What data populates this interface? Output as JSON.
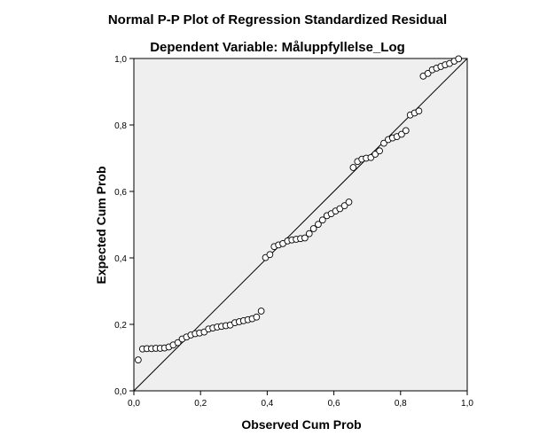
{
  "chart_data": {
    "type": "scatter",
    "title": "Normal P-P Plot of Regression Standardized Residual",
    "subtitle": "Dependent Variable: Måluppfyllelse_Log",
    "xlabel": "Observed Cum Prob",
    "ylabel": "Expected Cum Prob",
    "xlim": [
      0,
      1
    ],
    "ylim": [
      0,
      1
    ],
    "x_ticks": [
      "0,0",
      "0,2",
      "0,4",
      "0,6",
      "0,8",
      "1,0"
    ],
    "y_ticks": [
      "0,0",
      "0,2",
      "0,4",
      "0,6",
      "0,8",
      "1,0"
    ],
    "reference_line": {
      "from": [
        0,
        0
      ],
      "to": [
        1,
        1
      ]
    },
    "grid": false,
    "plot_background": "#efefef",
    "point_style": "open circle",
    "points": [
      [
        0.013,
        0.093
      ],
      [
        0.026,
        0.126
      ],
      [
        0.039,
        0.127
      ],
      [
        0.053,
        0.127
      ],
      [
        0.066,
        0.128
      ],
      [
        0.079,
        0.128
      ],
      [
        0.092,
        0.129
      ],
      [
        0.105,
        0.132
      ],
      [
        0.118,
        0.138
      ],
      [
        0.132,
        0.145
      ],
      [
        0.145,
        0.156
      ],
      [
        0.158,
        0.162
      ],
      [
        0.171,
        0.168
      ],
      [
        0.184,
        0.172
      ],
      [
        0.197,
        0.174
      ],
      [
        0.211,
        0.177
      ],
      [
        0.224,
        0.186
      ],
      [
        0.237,
        0.189
      ],
      [
        0.25,
        0.192
      ],
      [
        0.263,
        0.194
      ],
      [
        0.276,
        0.196
      ],
      [
        0.289,
        0.198
      ],
      [
        0.303,
        0.205
      ],
      [
        0.316,
        0.208
      ],
      [
        0.329,
        0.211
      ],
      [
        0.342,
        0.214
      ],
      [
        0.355,
        0.217
      ],
      [
        0.368,
        0.222
      ],
      [
        0.382,
        0.24
      ],
      [
        0.395,
        0.401
      ],
      [
        0.408,
        0.41
      ],
      [
        0.421,
        0.434
      ],
      [
        0.434,
        0.439
      ],
      [
        0.447,
        0.443
      ],
      [
        0.461,
        0.451
      ],
      [
        0.474,
        0.454
      ],
      [
        0.487,
        0.456
      ],
      [
        0.5,
        0.458
      ],
      [
        0.513,
        0.46
      ],
      [
        0.526,
        0.473
      ],
      [
        0.539,
        0.488
      ],
      [
        0.553,
        0.501
      ],
      [
        0.566,
        0.514
      ],
      [
        0.579,
        0.527
      ],
      [
        0.592,
        0.533
      ],
      [
        0.605,
        0.541
      ],
      [
        0.618,
        0.548
      ],
      [
        0.632,
        0.557
      ],
      [
        0.645,
        0.568
      ],
      [
        0.658,
        0.672
      ],
      [
        0.671,
        0.69
      ],
      [
        0.684,
        0.697
      ],
      [
        0.697,
        0.7
      ],
      [
        0.711,
        0.702
      ],
      [
        0.724,
        0.712
      ],
      [
        0.737,
        0.722
      ],
      [
        0.75,
        0.745
      ],
      [
        0.763,
        0.756
      ],
      [
        0.776,
        0.761
      ],
      [
        0.789,
        0.765
      ],
      [
        0.803,
        0.772
      ],
      [
        0.816,
        0.783
      ],
      [
        0.829,
        0.83
      ],
      [
        0.842,
        0.836
      ],
      [
        0.855,
        0.842
      ],
      [
        0.868,
        0.947
      ],
      [
        0.882,
        0.955
      ],
      [
        0.895,
        0.966
      ],
      [
        0.908,
        0.971
      ],
      [
        0.921,
        0.976
      ],
      [
        0.934,
        0.981
      ],
      [
        0.947,
        0.985
      ],
      [
        0.961,
        0.992
      ],
      [
        0.974,
        0.999
      ]
    ]
  }
}
